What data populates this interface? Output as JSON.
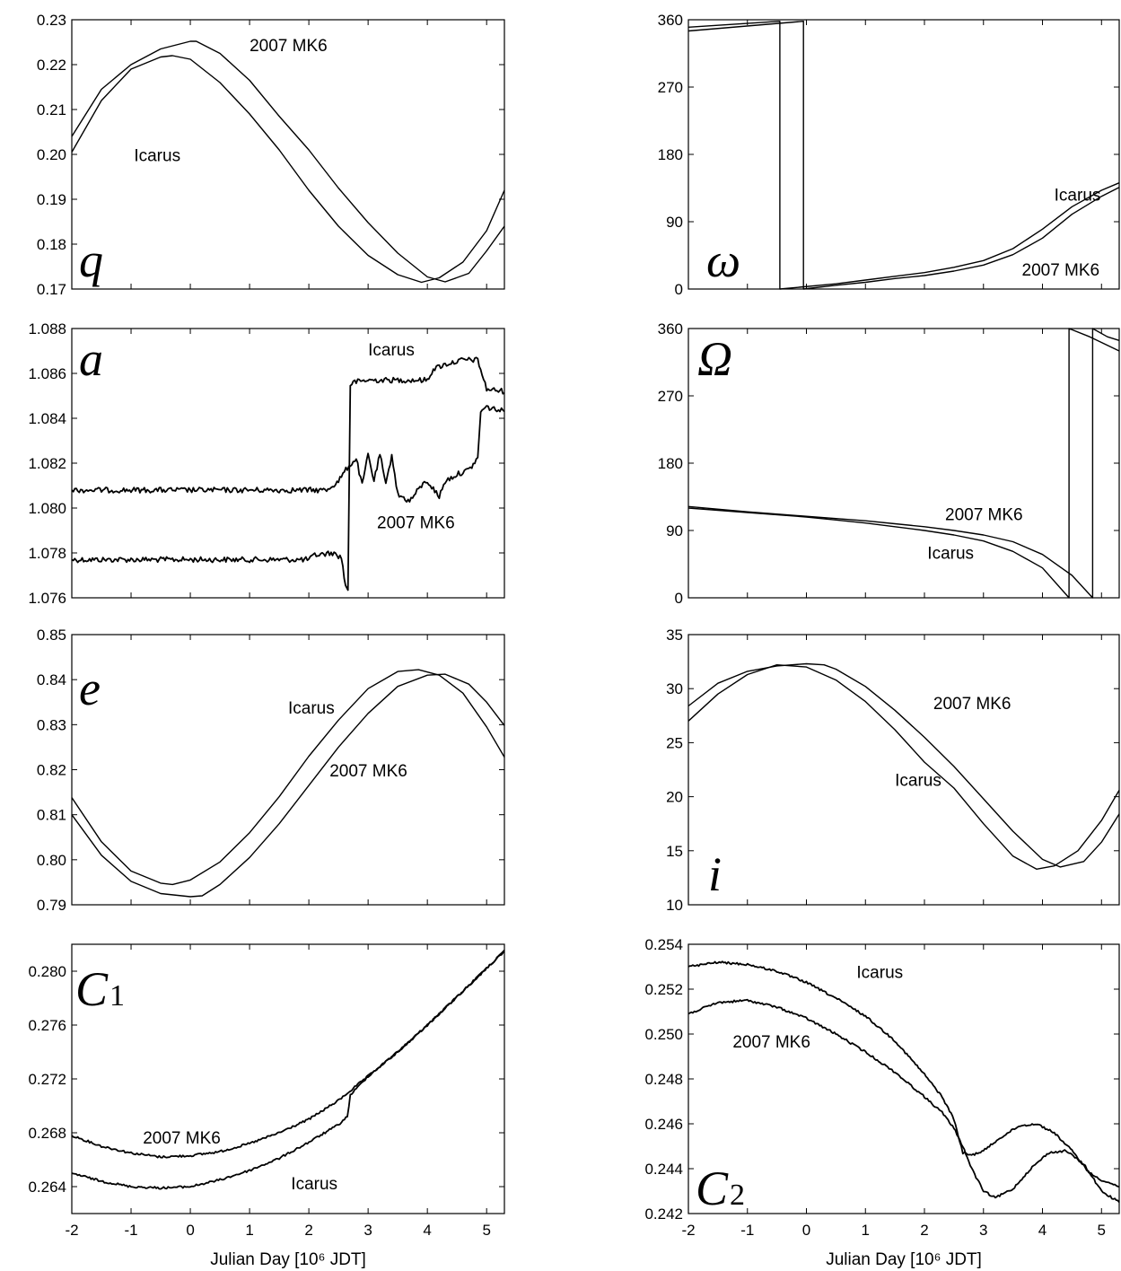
{
  "chart_data": [
    {
      "type": "line",
      "symbol": "q",
      "ylim": [
        0.17,
        0.23
      ],
      "yticks": [
        "0.17",
        "0.18",
        "0.19",
        "0.20",
        "0.21",
        "0.22",
        "0.23"
      ],
      "xlim": [
        -2,
        5.3
      ],
      "series": [
        {
          "name": "Icarus",
          "x": [
            -2,
            -1.5,
            -1,
            -0.5,
            -0.3,
            0,
            0.5,
            1,
            1.5,
            2,
            2.5,
            3,
            3.5,
            3.9,
            4.2,
            4.6,
            5,
            5.3
          ],
          "y": [
            0.2005,
            0.212,
            0.219,
            0.2217,
            0.222,
            0.2212,
            0.216,
            0.209,
            0.201,
            0.192,
            0.184,
            0.1775,
            0.1732,
            0.1715,
            0.1725,
            0.176,
            0.183,
            0.192
          ]
        },
        {
          "name": "2007 MK6",
          "x": [
            -2,
            -1.5,
            -1,
            -0.5,
            0,
            0.1,
            0.5,
            1,
            1.5,
            2,
            2.5,
            3,
            3.5,
            4,
            4.3,
            4.7,
            5,
            5.3
          ],
          "y": [
            0.204,
            0.2145,
            0.22,
            0.2235,
            0.2252,
            0.2252,
            0.2225,
            0.2165,
            0.2085,
            0.201,
            0.1925,
            0.1848,
            0.178,
            0.1727,
            0.1716,
            0.1735,
            0.1785,
            0.184
          ]
        }
      ],
      "annotations": [
        {
          "text": "2007 MK6",
          "x": 1.0,
          "y": 0.223
        },
        {
          "text": "Icarus",
          "x": -0.95,
          "y": 0.1985
        }
      ]
    },
    {
      "type": "line",
      "symbol": "ω",
      "ylim": [
        0,
        360
      ],
      "yticks": [
        "0",
        "90",
        "180",
        "270",
        "360"
      ],
      "xlim": [
        -2,
        5.3
      ],
      "series": [
        {
          "name": "Icarus",
          "x": [
            -2,
            -0.45,
            -0.45,
            0.5,
            1,
            1.5,
            2,
            2.5,
            3,
            3.5,
            4,
            4.5,
            5,
            5.3
          ],
          "y": [
            350,
            358,
            0,
            7,
            12,
            17,
            22,
            29,
            38,
            54,
            80,
            110,
            132,
            142
          ]
        },
        {
          "name": "2007 MK6",
          "x": [
            -2,
            -0.05,
            -0.05,
            0.5,
            1,
            1.5,
            2,
            2.5,
            3,
            3.5,
            4,
            4.5,
            5,
            5.3
          ],
          "y": [
            345,
            358,
            0,
            5,
            9,
            14,
            18,
            24,
            32,
            46,
            68,
            100,
            124,
            136
          ]
        }
      ],
      "annotations": [
        {
          "text": "Icarus",
          "x": 4.2,
          "y": 118
        },
        {
          "text": "2007 MK6",
          "x": 3.65,
          "y": 18
        }
      ]
    },
    {
      "type": "line",
      "symbol": "a",
      "ylim": [
        1.076,
        1.088
      ],
      "yticks": [
        "1.076",
        "1.078",
        "1.080",
        "1.082",
        "1.084",
        "1.086",
        "1.088"
      ],
      "xlim": [
        -2,
        5.3
      ],
      "series": [
        {
          "name": "Icarus",
          "x": [
            -2,
            0,
            2,
            2.1,
            2.4,
            2.55,
            2.62,
            2.66,
            2.7,
            2.75,
            3,
            3.5,
            4,
            4.1,
            4.3,
            4.6,
            4.85,
            5,
            5.3
          ],
          "y": [
            1.0777,
            1.0777,
            1.0777,
            1.0779,
            1.078,
            1.0778,
            1.0765,
            1.0764,
            1.0855,
            1.0856,
            1.0857,
            1.0857,
            1.0857,
            1.0862,
            1.0864,
            1.0866,
            1.0866,
            1.0853,
            1.0852
          ]
        },
        {
          "name": "2007 MK6",
          "x": [
            -2,
            0,
            2,
            2.3,
            2.5,
            2.65,
            2.8,
            2.9,
            3.0,
            3.1,
            3.2,
            3.3,
            3.4,
            3.5,
            3.7,
            3.9,
            4.0,
            4.2,
            4.3,
            4.5,
            4.7,
            4.85,
            4.9,
            5.0,
            5.3
          ],
          "y": [
            1.0808,
            1.0808,
            1.0808,
            1.0808,
            1.0812,
            1.0818,
            1.0822,
            1.081,
            1.0824,
            1.0812,
            1.0824,
            1.081,
            1.0824,
            1.0806,
            1.0803,
            1.081,
            1.0812,
            1.0805,
            1.0812,
            1.0815,
            1.0817,
            1.0822,
            1.0843,
            1.0845,
            1.0843
          ]
        }
      ],
      "annotations": [
        {
          "text": "Icarus",
          "x": 3.0,
          "y": 1.0868
        },
        {
          "text": "2007 MK6",
          "x": 3.15,
          "y": 1.0791
        }
      ]
    },
    {
      "type": "line",
      "symbol": "Ω",
      "ylim": [
        0,
        360
      ],
      "yticks": [
        "0",
        "90",
        "180",
        "270",
        "360"
      ],
      "xlim": [
        -2,
        5.3
      ],
      "series": [
        {
          "name": "Icarus",
          "x": [
            -2,
            -1,
            0,
            0.5,
            1,
            1.5,
            2,
            2.5,
            3,
            3.5,
            4,
            4.45,
            4.45,
            4.8,
            5.3
          ],
          "y": [
            120,
            114,
            108,
            104,
            100,
            95,
            90,
            84,
            76,
            62,
            40,
            0,
            360,
            349,
            330
          ]
        },
        {
          "name": "2007 MK6",
          "x": [
            -2,
            -1,
            0,
            0.5,
            1,
            1.5,
            2,
            2.5,
            3,
            3.5,
            4,
            4.5,
            4.85,
            4.85,
            5.1,
            5.3
          ],
          "y": [
            122,
            115,
            109,
            106,
            103,
            99,
            95,
            90,
            84,
            75,
            58,
            30,
            0,
            360,
            349,
            344
          ]
        }
      ],
      "annotations": [
        {
          "text": "2007 MK6",
          "x": 2.35,
          "y": 104
        },
        {
          "text": "Icarus",
          "x": 2.05,
          "y": 52
        }
      ]
    },
    {
      "type": "line",
      "symbol": "e",
      "ylim": [
        0.79,
        0.85
      ],
      "yticks": [
        "0.79",
        "0.80",
        "0.81",
        "0.82",
        "0.83",
        "0.84",
        "0.85"
      ],
      "xlim": [
        -2,
        5.3
      ],
      "series": [
        {
          "name": "Icarus",
          "x": [
            -2,
            -1.5,
            -1,
            -0.5,
            -0.3,
            0,
            0.5,
            1,
            1.5,
            2,
            2.5,
            3,
            3.5,
            3.85,
            4.2,
            4.6,
            5,
            5.3
          ],
          "y": [
            0.8138,
            0.804,
            0.7975,
            0.7948,
            0.7945,
            0.7955,
            0.7995,
            0.806,
            0.814,
            0.823,
            0.831,
            0.838,
            0.8418,
            0.8422,
            0.841,
            0.837,
            0.8295,
            0.8228
          ]
        },
        {
          "name": "2007 MK6",
          "x": [
            -2,
            -1.5,
            -1,
            -0.5,
            0,
            0.2,
            0.5,
            1,
            1.5,
            2,
            2.5,
            3,
            3.5,
            4,
            4.3,
            4.7,
            5,
            5.3
          ],
          "y": [
            0.81,
            0.801,
            0.7952,
            0.7925,
            0.7918,
            0.792,
            0.7945,
            0.8005,
            0.808,
            0.8165,
            0.825,
            0.8325,
            0.8385,
            0.841,
            0.8412,
            0.839,
            0.835,
            0.8298
          ]
        }
      ],
      "annotations": [
        {
          "text": "Icarus",
          "x": 1.65,
          "y": 0.8325
        },
        {
          "text": "2007 MK6",
          "x": 2.35,
          "y": 0.8185
        }
      ]
    },
    {
      "type": "line",
      "symbol": "i",
      "ylim": [
        10,
        35
      ],
      "yticks": [
        "10",
        "15",
        "20",
        "25",
        "30",
        "35"
      ],
      "xlim": [
        -2,
        5.3
      ],
      "series": [
        {
          "name": "Icarus",
          "x": [
            -2,
            -1.5,
            -1,
            -0.5,
            0,
            0.5,
            1,
            1.5,
            2,
            2.5,
            3,
            3.5,
            3.9,
            4.2,
            4.6,
            5,
            5.3
          ],
          "y": [
            27.0,
            29.5,
            31.3,
            32.2,
            32.0,
            30.8,
            28.8,
            26.2,
            23.2,
            20.8,
            17.5,
            14.5,
            13.3,
            13.6,
            15.0,
            17.8,
            20.6
          ]
        },
        {
          "name": "2007 MK6",
          "x": [
            -2,
            -1.5,
            -1,
            -0.5,
            0,
            0.3,
            0.5,
            1,
            1.5,
            2,
            2.5,
            3,
            3.5,
            4,
            4.3,
            4.7,
            5,
            5.3
          ],
          "y": [
            28.4,
            30.5,
            31.6,
            32.1,
            32.3,
            32.2,
            31.8,
            30.2,
            28.0,
            25.5,
            22.8,
            19.8,
            16.8,
            14.2,
            13.5,
            14.0,
            15.8,
            18.4
          ]
        }
      ],
      "annotations": [
        {
          "text": "2007 MK6",
          "x": 2.15,
          "y": 28.1
        },
        {
          "text": "Icarus",
          "x": 1.5,
          "y": 21.0
        }
      ]
    },
    {
      "type": "line",
      "symbol": "C",
      "subscript": "1",
      "ylim": [
        0.262,
        0.282
      ],
      "yticks": [
        "0.264",
        "0.268",
        "0.272",
        "0.276",
        "0.280"
      ],
      "xlim": [
        -2,
        5.3
      ],
      "series": [
        {
          "name": "2007 MK6",
          "x": [
            -2,
            -1.5,
            -1,
            -0.5,
            0,
            0.5,
            1,
            1.5,
            2,
            2.5,
            3,
            3.5,
            4,
            4.5,
            5,
            5.3
          ],
          "y": [
            0.2678,
            0.267,
            0.2665,
            0.2662,
            0.2663,
            0.2666,
            0.2672,
            0.268,
            0.269,
            0.2704,
            0.2722,
            0.274,
            0.276,
            0.2781,
            0.2802,
            0.2815
          ]
        },
        {
          "name": "Icarus",
          "x": [
            -2,
            -1.5,
            -1,
            -0.5,
            0,
            0.5,
            1,
            1.5,
            2,
            2.5,
            2.65,
            2.7,
            3,
            3.5,
            4,
            4.5,
            5,
            5.3
          ],
          "y": [
            0.265,
            0.2644,
            0.264,
            0.2639,
            0.264,
            0.2645,
            0.2652,
            0.2661,
            0.2673,
            0.2686,
            0.2692,
            0.2708,
            0.2722,
            0.274,
            0.276,
            0.2781,
            0.2802,
            0.2815
          ]
        }
      ],
      "annotations": [
        {
          "text": "2007 MK6",
          "x": -0.8,
          "y": 0.2672
        },
        {
          "text": "Icarus",
          "x": 1.7,
          "y": 0.2638
        }
      ]
    },
    {
      "type": "line",
      "symbol": "C",
      "subscript": "2",
      "ylim": [
        0.242,
        0.254
      ],
      "yticks": [
        "0.242",
        "0.244",
        "0.246",
        "0.248",
        "0.250",
        "0.252",
        "0.254"
      ],
      "xlim": [
        -2,
        5.3
      ],
      "xticks": [
        "-2",
        "-1",
        "0",
        "1",
        "2",
        "3",
        "4",
        "5"
      ],
      "xlabel": "Julian Day [10⁶ JDT]",
      "series": [
        {
          "name": "Icarus",
          "x": [
            -2,
            -1.5,
            -1,
            -0.5,
            0,
            0.5,
            1,
            1.5,
            2,
            2.3,
            2.5,
            2.65,
            2.8,
            3,
            3.3,
            3.6,
            3.9,
            4.2,
            4.5,
            4.8,
            5.0,
            5.3
          ],
          "y": [
            0.253,
            0.2532,
            0.2531,
            0.2528,
            0.2523,
            0.2516,
            0.2508,
            0.2497,
            0.2482,
            0.2472,
            0.2462,
            0.2447,
            0.2446,
            0.2448,
            0.2454,
            0.2459,
            0.246,
            0.2456,
            0.2448,
            0.2438,
            0.2435,
            0.2432
          ]
        },
        {
          "name": "2007 MK6",
          "x": [
            -2,
            -1.5,
            -1,
            -0.5,
            0,
            0.5,
            1,
            1.5,
            2,
            2.3,
            2.5,
            2.65,
            2.8,
            3,
            3.2,
            3.5,
            3.8,
            4.1,
            4.4,
            4.7,
            5.0,
            5.3
          ],
          "y": [
            0.2509,
            0.2514,
            0.2515,
            0.2512,
            0.2507,
            0.25,
            0.2492,
            0.2483,
            0.2472,
            0.2465,
            0.2458,
            0.245,
            0.244,
            0.243,
            0.2427,
            0.2431,
            0.244,
            0.2447,
            0.2448,
            0.2442,
            0.243,
            0.2425
          ]
        }
      ],
      "annotations": [
        {
          "text": "Icarus",
          "x": 0.85,
          "y": 0.2525
        },
        {
          "text": "2007 MK6",
          "x": -1.25,
          "y": 0.2494
        }
      ]
    }
  ],
  "bottom_left_xticks": [
    "-2",
    "-1",
    "0",
    "1",
    "2",
    "3",
    "4",
    "5"
  ],
  "bottom_left_xlabel": "Julian Day [10⁶ JDT]"
}
